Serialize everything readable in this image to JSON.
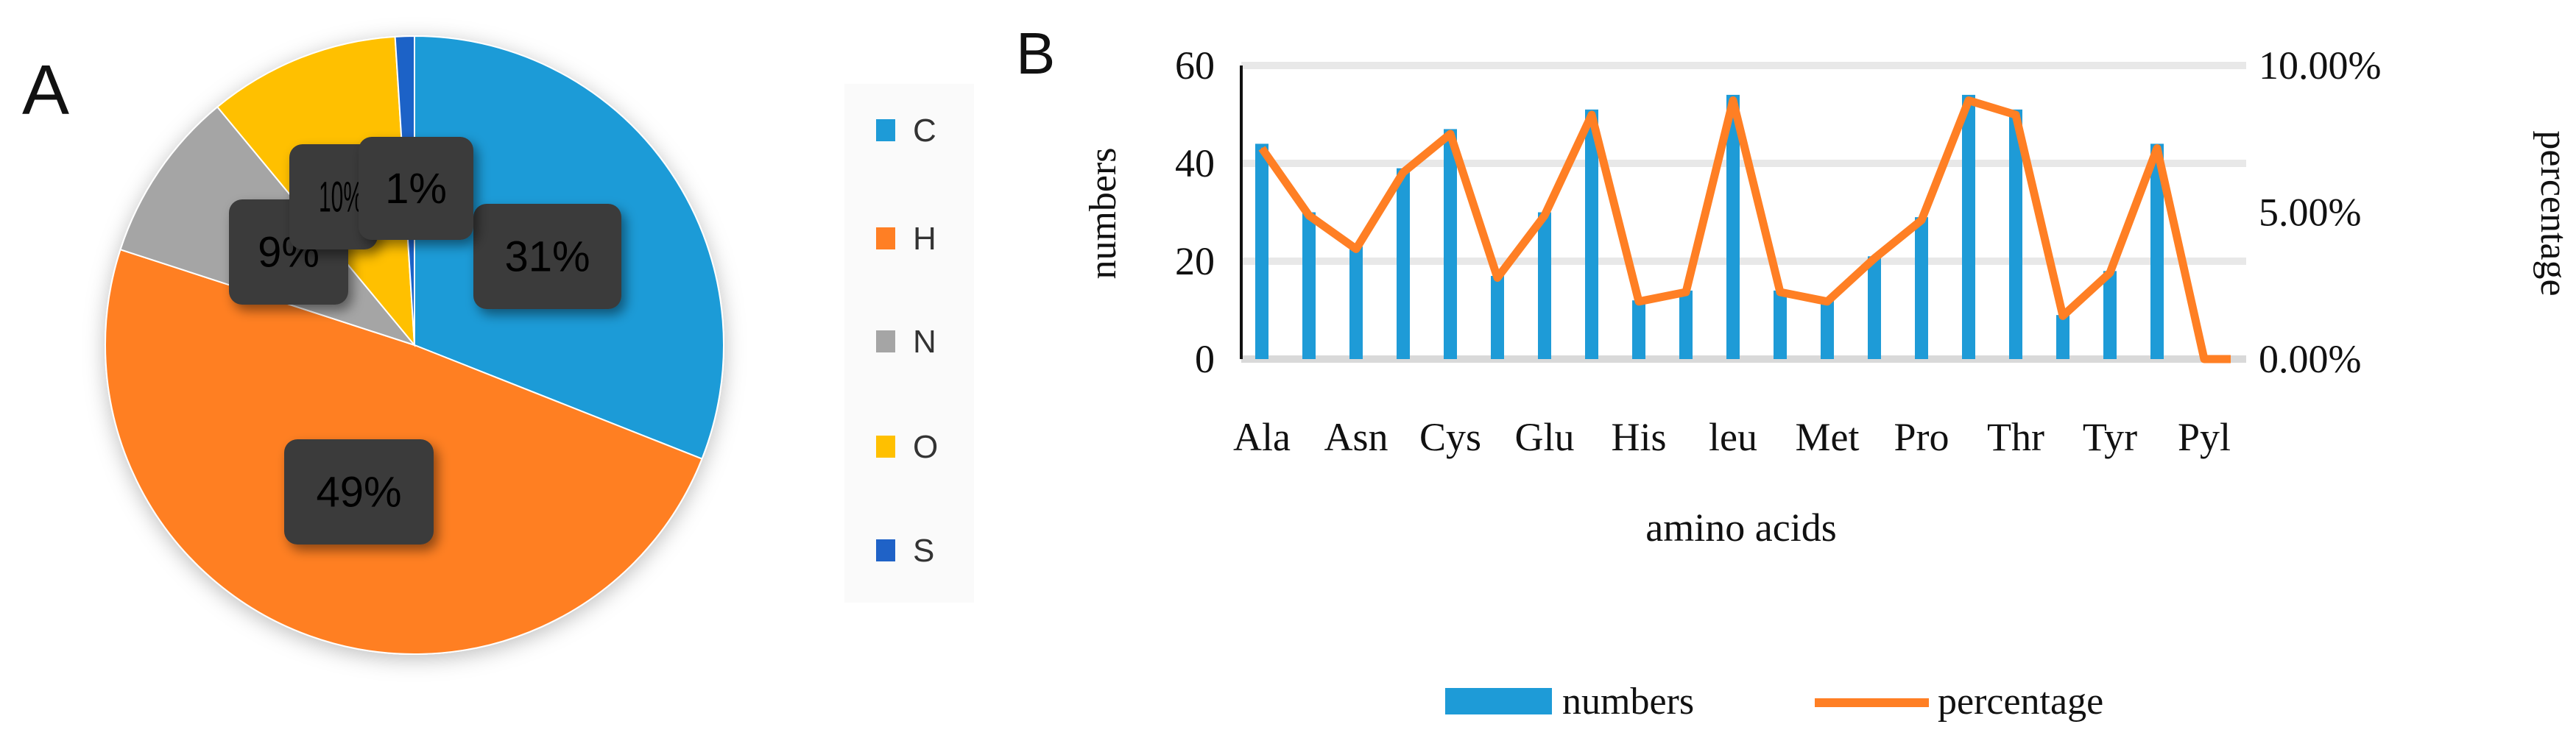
{
  "panel_a": {
    "label": "A",
    "chart_data": {
      "type": "pie",
      "categories": [
        "C",
        "H",
        "N",
        "O",
        "S"
      ],
      "values": [
        31,
        49,
        9,
        10,
        1
      ],
      "data_labels": [
        "31%",
        "49%",
        "9%",
        "10%",
        "1%"
      ],
      "colors": [
        "#1E9BD7",
        "#FF7F24",
        "#A5A5A5",
        "#FFC000",
        "#1F62C7"
      ],
      "legend": "right",
      "start": "12 o'clock, clockwise"
    }
  },
  "panel_b": {
    "label": "B",
    "chart_data": {
      "type": "bar+line",
      "categories": [
        "Ala",
        "",
        "Asn",
        "",
        "Cys",
        "",
        "Glu",
        "",
        "His",
        "",
        "leu",
        "",
        "Met",
        "",
        "Pro",
        "",
        "Thr",
        "",
        "Tyr",
        "",
        "Pyl"
      ],
      "series": [
        {
          "name": "numbers",
          "type": "bar",
          "axis": "left",
          "color": "#1E9BD7",
          "values": [
            44,
            30,
            23,
            39,
            47,
            17,
            30,
            51,
            12,
            14,
            54,
            14,
            12,
            21,
            29,
            54,
            51,
            9,
            18,
            44,
            0
          ]
        },
        {
          "name": "percentage",
          "type": "line",
          "axis": "right",
          "color": "#FF7F24",
          "values": [
            7.18,
            4.89,
            3.75,
            6.36,
            7.67,
            2.77,
            4.89,
            8.32,
            1.96,
            2.28,
            8.81,
            2.28,
            1.96,
            3.43,
            4.73,
            8.81,
            8.32,
            1.47,
            2.94,
            7.18,
            0
          ]
        }
      ],
      "xlabel": "amino acids",
      "ylabel": "numbers",
      "y2label": "percentage",
      "ylim": [
        0,
        60
      ],
      "y2lim": [
        0,
        10
      ],
      "yticks": [
        "0",
        "20",
        "40",
        "60"
      ],
      "y2ticks": [
        "0.00%",
        "5.00%",
        "10.00%"
      ],
      "grid": true,
      "legend": "bottom"
    }
  }
}
